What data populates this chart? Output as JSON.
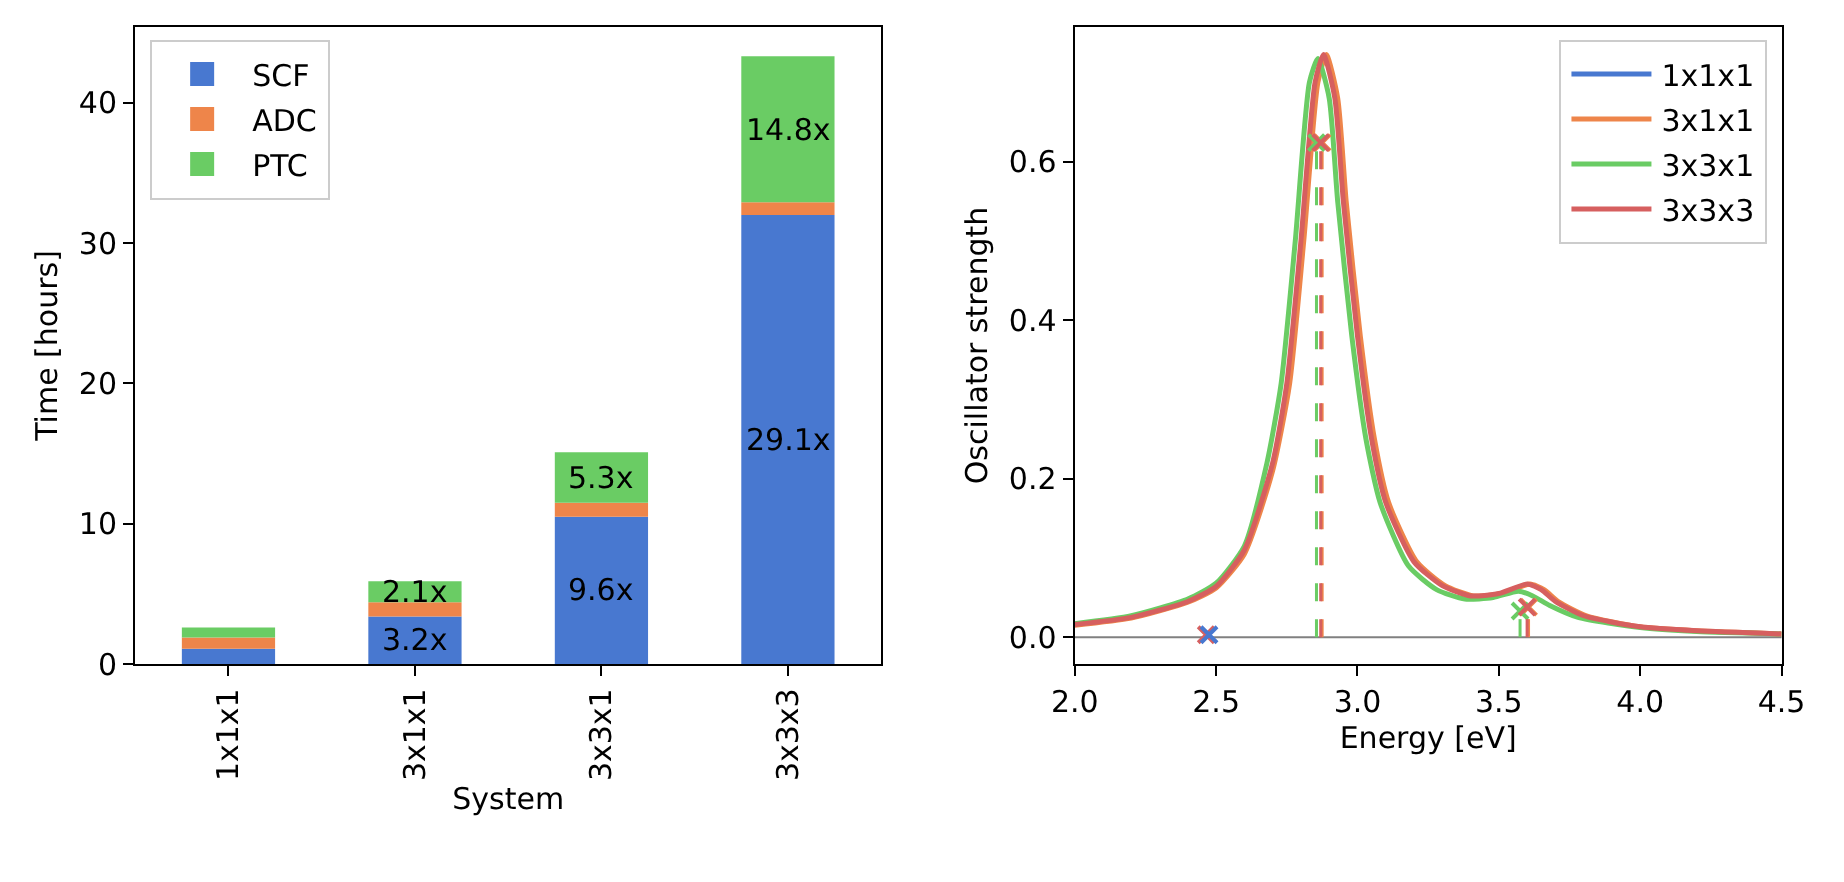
{
  "chart_data": [
    {
      "type": "bar",
      "xlabel": "System",
      "ylabel": "Time [hours]",
      "categories": [
        "1x1x1",
        "3x1x1",
        "3x3x1",
        "3x3x3"
      ],
      "stacked": true,
      "ylim": [
        0,
        45.4
      ],
      "yticks": [
        0,
        10,
        20,
        30,
        40
      ],
      "legend": "top left",
      "grid": false,
      "series": [
        {
          "name": "SCF",
          "color": "#4878d0",
          "values": [
            1.1,
            3.4,
            10.5,
            32.0
          ]
        },
        {
          "name": "ADC",
          "color": "#ee854a",
          "values": [
            0.8,
            1.0,
            1.0,
            0.9
          ]
        },
        {
          "name": "PTC",
          "color": "#6acc64",
          "values": [
            0.7,
            1.5,
            3.6,
            10.4
          ]
        }
      ],
      "annotations": [
        "3.2x",
        "9.6x",
        "29.1x",
        "2.1x",
        "5.3x",
        "14.8x"
      ]
    },
    {
      "type": "line",
      "xlabel": "Energy [eV]",
      "ylabel": "Oscillator strength",
      "xlim": [
        2.0,
        4.5
      ],
      "ylim": [
        -0.034,
        0.77
      ],
      "legend": "top right",
      "grid": false,
      "xticks": [
        {
          "value": 2.0,
          "label": "2.0"
        },
        {
          "value": 2.5,
          "label": "2.5"
        },
        {
          "value": 3.0,
          "label": "3.0"
        },
        {
          "value": 3.5,
          "label": "3.5"
        },
        {
          "value": 4.0,
          "label": "4.0"
        },
        {
          "value": 4.5,
          "label": "4.5"
        }
      ],
      "yticks": [
        {
          "value": 0.0,
          "label": "0.0"
        },
        {
          "value": 0.2,
          "label": "0.2"
        },
        {
          "value": 0.4,
          "label": "0.4"
        },
        {
          "value": 0.6,
          "label": "0.6"
        }
      ],
      "ref_lines": [
        {
          "axis": "y",
          "value": 0,
          "color": "#808080"
        }
      ],
      "series": [
        {
          "name": "1x1x1",
          "color": "#4878d0",
          "marker": "none",
          "line_style": "solid"
        },
        {
          "name": "3x1x1",
          "color": "#ee854a",
          "marker": "none",
          "line_style": "solid",
          "x": [
            2.0,
            2.2,
            2.4,
            2.5,
            2.6,
            2.7,
            2.76,
            2.81,
            2.86,
            2.89,
            2.93,
            2.96,
            3.01,
            3.06,
            3.11,
            3.21,
            3.31,
            3.41,
            3.51,
            3.61,
            3.66,
            3.71,
            3.81,
            4.0,
            4.2,
            4.5
          ],
          "values": [
            0.015,
            0.024,
            0.044,
            0.062,
            0.105,
            0.21,
            0.32,
            0.5,
            0.7,
            0.735,
            0.68,
            0.55,
            0.38,
            0.25,
            0.17,
            0.095,
            0.065,
            0.052,
            0.055,
            0.067,
            0.06,
            0.045,
            0.027,
            0.013,
            0.008,
            0.004
          ]
        },
        {
          "name": "3x3x1",
          "color": "#6acc64",
          "marker": "none",
          "line_style": "solid",
          "x": [
            2.0,
            2.2,
            2.4,
            2.5,
            2.6,
            2.68,
            2.73,
            2.78,
            2.83,
            2.86,
            2.9,
            2.93,
            2.98,
            3.03,
            3.08,
            3.18,
            3.28,
            3.38,
            3.48,
            3.57,
            3.62,
            3.68,
            3.78,
            4.0,
            4.2,
            4.5
          ],
          "values": [
            0.017,
            0.027,
            0.048,
            0.068,
            0.115,
            0.22,
            0.32,
            0.5,
            0.7,
            0.73,
            0.68,
            0.55,
            0.38,
            0.25,
            0.17,
            0.09,
            0.06,
            0.048,
            0.05,
            0.058,
            0.052,
            0.04,
            0.025,
            0.012,
            0.007,
            0.004
          ]
        },
        {
          "name": "3x3x3",
          "color": "#d65f5f",
          "marker": "none",
          "line_style": "solid",
          "x": [
            2.0,
            2.2,
            2.4,
            2.5,
            2.6,
            2.7,
            2.75,
            2.8,
            2.85,
            2.88,
            2.92,
            2.95,
            3.0,
            3.05,
            3.1,
            3.2,
            3.3,
            3.4,
            3.5,
            3.6,
            3.65,
            3.7,
            3.8,
            4.0,
            4.2,
            4.5
          ],
          "values": [
            0.016,
            0.025,
            0.045,
            0.064,
            0.11,
            0.22,
            0.32,
            0.5,
            0.7,
            0.735,
            0.68,
            0.55,
            0.38,
            0.25,
            0.17,
            0.095,
            0.065,
            0.052,
            0.055,
            0.067,
            0.06,
            0.045,
            0.027,
            0.013,
            0.008,
            0.004
          ]
        },
        {
          "type": "lollipop",
          "color": "#ee854a",
          "marker": "cross",
          "line_style": "dashed",
          "x": [
            2.875,
            3.605
          ],
          "values": [
            0.624,
            0.038
          ]
        },
        {
          "type": "lollipop",
          "color": "#6acc64",
          "marker": "cross",
          "line_style": "dashed",
          "x": [
            2.855,
            3.575
          ],
          "values": [
            0.624,
            0.033
          ]
        },
        {
          "type": "lollipop",
          "color": "#d65f5f",
          "marker": "cross",
          "line_style": "dashed",
          "x": [
            2.465,
            2.87,
            3.6
          ],
          "values": [
            0.003,
            0.624,
            0.038
          ]
        },
        {
          "type": "lollipop",
          "color": "#4878d0",
          "marker": "cross",
          "line_style": "dashed",
          "x": [
            2.475
          ],
          "values": [
            0.003
          ]
        }
      ]
    }
  ]
}
